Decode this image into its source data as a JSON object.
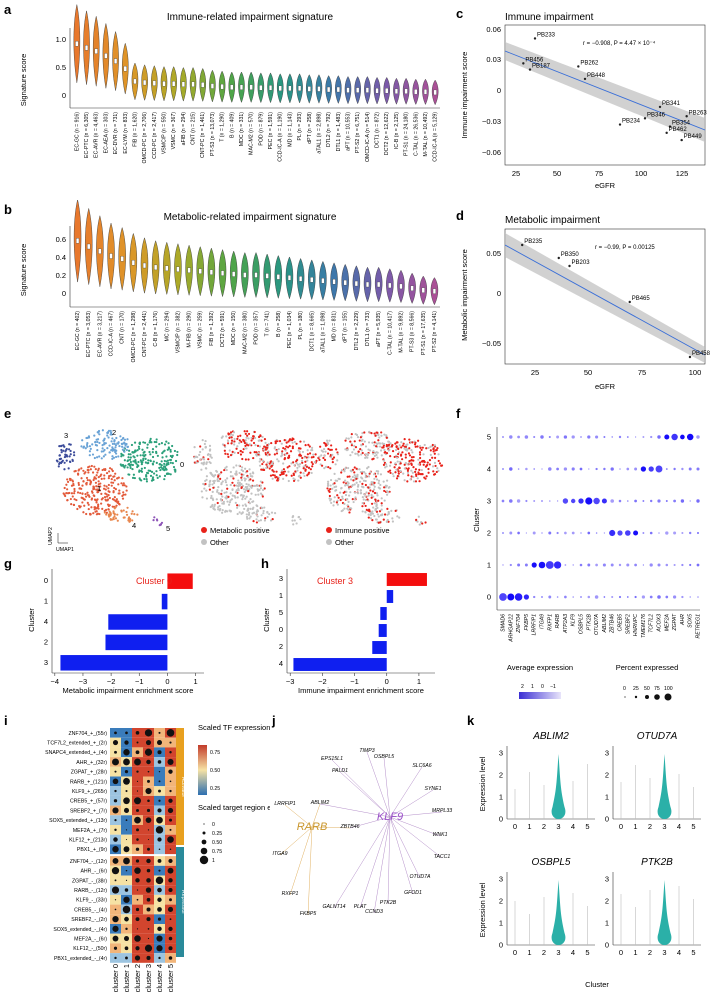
{
  "panels": {
    "a": "a",
    "b": "b",
    "c": "c",
    "d": "d",
    "e": "e",
    "f": "f",
    "g": "g",
    "h": "h",
    "i": "i",
    "j": "j",
    "k": "k"
  },
  "panel_a": {
    "title": "Immune-related impairment signature",
    "ylabel": "Signature score",
    "yticks": [
      "1.0",
      "0.5",
      "0"
    ],
    "categories": [
      "EC-GC (n = 916)",
      "EC-PTC (n = 6,305)",
      "EC-AVR (n = 4,463)",
      "EC-AEA (n = 303)",
      "EC-DVR (n = 731)",
      "EC-LYM (n = 833)",
      "FIB (n = 1,620)",
      "OMCD-PC (n = 2,706)",
      "CCD-PC (n = 2,417)",
      "VSMC/P (n = 550)",
      "VSMC (n = 367)",
      "aFIB (n = 294)",
      "CNT (n = 215)",
      "CNT-PC (n = 1,461)",
      "PT-S3 (n = 13,073)",
      "T (n = 1,290)",
      "B (n = 409)",
      "MDC (n = 331)",
      "MAC-M2 (n = 570)",
      "POD (n = 879)",
      "PEC (n = 1,591)",
      "CCD-IC-A (n = 1,190)",
      "MD (n = 1,143)",
      "PL (n = 293)",
      "dPT (n = 258)",
      "aTAL1 (n = 2,898)",
      "DTL2 (n = 792)",
      "DTL1 (n = 1,483)",
      "aPT (n = 10,553)",
      "PT-S2 (n = 6,751)",
      "OMCD-IC-A (n = 514)",
      "DCT1 (n = 872)",
      "DCT2 (n = 12,622)",
      "IC-B (n = 2,125)",
      "PT-S1 (n = 24,180)",
      "C-TAL (n = 26,536)",
      "M-TAL (n = 10,492)",
      "CCD-IC-A (n = 5,129)"
    ],
    "medians": [
      0.85,
      0.78,
      0.72,
      0.64,
      0.55,
      0.42,
      0.2,
      0.18,
      0.17,
      0.16,
      0.16,
      0.15,
      0.15,
      0.14,
      0.12,
      0.11,
      0.1,
      0.1,
      0.1,
      0.09,
      0.09,
      0.08,
      0.08,
      0.08,
      0.07,
      0.07,
      0.06,
      0.06,
      0.05,
      0.05,
      0.05,
      0.04,
      0.04,
      0.03,
      0.03,
      0.02,
      0.02,
      0.01
    ]
  },
  "panel_b": {
    "title": "Metabolic-related impairment signature",
    "ylabel": "Signature score",
    "yticks": [
      "0.6",
      "0.4",
      "0.2",
      "0"
    ],
    "categories": [
      "EC-GC (n = 402)",
      "EC-PTC (n = 3,053)",
      "EC-AVR (n = 3,217)",
      "CCD-IC-A (n = 467)",
      "CNT (n = 170)",
      "OMCD-PC (n = 1,298)",
      "CNT-PC (n = 2,441)",
      "C-B (n = 1,176)",
      "MC (n = 294)",
      "VSMC/P (n = 382)",
      "M-FIB (n = 290)",
      "VSMC (n = 259)",
      "FIB (n = 1,392)",
      "DCT2 (n = 591)",
      "MDC (n = 150)",
      "MAC-M2 (n = 380)",
      "POD (n = 357)",
      "T (n = 741)",
      "B (n = 258)",
      "PEC (n = 1,034)",
      "PL (n = 180)",
      "DCT1 (n = 8,665)",
      "aTAL1 (n = 1,098)",
      "MD (n = 831)",
      "dPT (n = 155)",
      "DTL2 (n = 2,229)",
      "DTL1 (n = 733)",
      "aPT (n = 5,935)",
      "C-TAL (n = 10,417)",
      "M-TAL (n = 9,892)",
      "PT-S3 (n = 8,566)",
      "PT-S1 (n = 17,635)",
      "PT-S2 (n = 4,141)"
    ],
    "medians": [
      0.56,
      0.5,
      0.45,
      0.4,
      0.37,
      0.33,
      0.3,
      0.28,
      0.27,
      0.26,
      0.25,
      0.24,
      0.23,
      0.22,
      0.21,
      0.2,
      0.2,
      0.19,
      0.18,
      0.17,
      0.16,
      0.15,
      0.14,
      0.13,
      0.12,
      0.11,
      0.1,
      0.1,
      0.09,
      0.08,
      0.06,
      0.04,
      0.03
    ]
  },
  "panel_c": {
    "title": "Immune impairment",
    "xlabel": "eGFR",
    "ylabel": "Immune impairment score",
    "stat": "r = −0.908, P = 4.47 × 10⁻⁴",
    "xticks": [
      "25",
      "50",
      "75",
      "100",
      "125"
    ],
    "yticks": [
      "0.06",
      "0.03",
      "0",
      "−0.03",
      "−0.06"
    ],
    "points": [
      {
        "label": "PB233",
        "x": 33,
        "y": 0.052
      },
      {
        "label": "PB456",
        "x": 26,
        "y": 0.028
      },
      {
        "label": "PB187",
        "x": 30,
        "y": 0.022
      },
      {
        "label": "PB262",
        "x": 59,
        "y": 0.025
      },
      {
        "label": "PB448",
        "x": 63,
        "y": 0.013
      },
      {
        "label": "PB341",
        "x": 108,
        "y": -0.014
      },
      {
        "label": "PB346",
        "x": 99,
        "y": -0.025
      },
      {
        "label": "PB263",
        "x": 124,
        "y": -0.023
      },
      {
        "label": "PB234",
        "x": 84,
        "y": -0.031
      },
      {
        "label": "PB354",
        "x": 114,
        "y": -0.033
      },
      {
        "label": "PB462",
        "x": 112,
        "y": -0.039
      },
      {
        "label": "PB449",
        "x": 121,
        "y": -0.046
      }
    ],
    "xlim": [
      15,
      135
    ],
    "ylim": [
      -0.07,
      0.065
    ]
  },
  "panel_d": {
    "title": "Metabolic impairment",
    "xlabel": "eGFR",
    "ylabel": "Metabolic impairment score",
    "stat": "r = −0.99, P = 0.00125",
    "xticks": [
      "25",
      "50",
      "75",
      "100"
    ],
    "yticks": [
      "0.05",
      "0",
      "−0.05"
    ],
    "points": [
      {
        "label": "PB235",
        "x": 20,
        "y": 0.054
      },
      {
        "label": "PB350",
        "x": 37,
        "y": 0.041
      },
      {
        "label": "PB203",
        "x": 42,
        "y": 0.033
      },
      {
        "label": "PB465",
        "x": 70,
        "y": -0.003
      },
      {
        "label": "PB458",
        "x": 98,
        "y": -0.058
      }
    ],
    "xlim": [
      12,
      105
    ],
    "ylim": [
      -0.065,
      0.07
    ]
  },
  "panel_e": {
    "clusters": [
      "0",
      "1",
      "2",
      "3",
      "4",
      "5"
    ],
    "umap1": "UMAP1",
    "umap2": "UMAP2",
    "legend_metabolic": "Metabolic positive",
    "legend_immune": "Immune positive",
    "legend_other": "Other",
    "colors": {
      "c0": "#2aa07a",
      "c1": "#e35a3a",
      "c2": "#6aa3d6",
      "c3": "#3b4b9a",
      "c4": "#e8874e",
      "c5": "#8e55b8",
      "positive": "#e8221a",
      "other": "#c2c2c2"
    }
  },
  "panel_f": {
    "ylabel": "Cluster",
    "clusters": [
      "5",
      "4",
      "3",
      "2",
      "1",
      "0"
    ],
    "genes": [
      "SMAD6",
      "ARHGAP22",
      "ZNF704",
      "FKBP5",
      "LRRFIP1",
      "ITGA9",
      "RXFP1",
      "RARB",
      "ATP2A3",
      "KLF9",
      "OSBPL5",
      "PTK2B",
      "OTUD7A",
      "ABLIM2",
      "ZBTB46",
      "CREB5",
      "SREBF2",
      "HNRNPC",
      "TMEM176",
      "TCF7L2",
      "ACOX3",
      "MEF2A",
      "ZGPAT",
      "AHR",
      "SOX5",
      "RETREG1"
    ],
    "legend_avg_title": "Average expression",
    "legend_avg_ticks": [
      "2",
      "1",
      "0",
      "−1"
    ],
    "legend_pct_title": "Percent expressed",
    "legend_pct_ticks": [
      "0",
      "25",
      "50",
      "75",
      "100"
    ]
  },
  "panel_g": {
    "ylabel": "Cluster",
    "xlabel": "Metabolic impairment enrichment score",
    "highlight": "Cluster 0",
    "clusters": [
      "0",
      "1",
      "4",
      "2",
      "3"
    ],
    "values": [
      0.9,
      -0.2,
      -2.1,
      -2.2,
      -3.8
    ],
    "xticks": [
      "−4",
      "−3",
      "−2",
      "−1",
      "0",
      "1"
    ],
    "xlim": [
      -4.1,
      1.3
    ]
  },
  "panel_h": {
    "ylabel": "Cluster",
    "xlabel": "Immune impairment enrichment score",
    "highlight": "Cluster 3",
    "clusters": [
      "3",
      "1",
      "5",
      "0",
      "2",
      "4"
    ],
    "values": [
      1.25,
      0.2,
      -0.2,
      -0.25,
      -0.45,
      -2.9
    ],
    "xticks": [
      "−3",
      "−2",
      "−1",
      "0",
      "1"
    ],
    "xlim": [
      -3.1,
      1.5
    ]
  },
  "panel_i": {
    "rows": [
      "ZNF704_+_(55r)",
      "TCF7L2_extended_+_(2r)",
      "SNAPC4_extended_+_(4r)",
      "AHR_+_(32r)",
      "ZGPAT_+_(28r)",
      "RARB_+_(121r)",
      "KLF9_+_(265r)",
      "CREB5_+_(57r)",
      "SREBF2_+_(7r)",
      "SOX5_extended_+_(13r)",
      "MEF2A_+_(7r)",
      "KLF12_+_(213r)",
      "PBX1_+_(9r)",
      "ZNF704_-_(12r)",
      "AHR_-_(6r)",
      "ZGPAT_-_(38r)",
      "RARB_-_(12r)",
      "KLF9_-_(33r)",
      "CREB5_-_(4r)",
      "SREBF2_-_(2r)",
      "SOX5_extended_-_(4r)",
      "MEF2A_-_(6r)",
      "KLF12_-_(50r)",
      "PBX1_extended_-_(4r)"
    ],
    "cols": [
      "cluster 0",
      "cluster 1",
      "cluster 2",
      "cluster 3",
      "cluster 4",
      "cluster 5"
    ],
    "group_activator": "Activator",
    "group_repressor": "Repressor",
    "legend_tf_title": "Scaled TF expression",
    "legend_tf_ticks": [
      "0.75",
      "0.50",
      "0.25"
    ],
    "legend_region_title": "Scaled target region enrich",
    "legend_region_ticks": [
      "0",
      "0.25",
      "0.50",
      "0.75",
      "1"
    ]
  },
  "panel_j": {
    "hubs": [
      "KLF9",
      "RARB"
    ],
    "klf9_targets": [
      "EPS15L1",
      "TIMP3",
      "OSBPL5",
      "SLC6A6",
      "PALD1",
      "SYNE1",
      "MRPL33",
      "WNK1",
      "TACC1",
      "OTUD7A",
      "GFOD1",
      "PTK2B",
      "CCND3",
      "PLAT",
      "GALNT14",
      "ZBTB46",
      "ABLIM2"
    ],
    "rarb_targets": [
      "LRRFIP1",
      "ITGA9",
      "RXFP1",
      "FKBP5",
      "ABLIM2",
      "ZBTB46"
    ]
  },
  "panel_k": {
    "genes": [
      "ABLIM2",
      "OTUD7A",
      "OSBPL5",
      "PTK2B"
    ],
    "ylabel": "Expression level",
    "xlabel": "Cluster",
    "xticks": [
      "0",
      "1",
      "2",
      "3",
      "4",
      "5"
    ],
    "yticks": [
      "0",
      "1",
      "2",
      "3"
    ],
    "color": "#2bb0a8"
  }
}
